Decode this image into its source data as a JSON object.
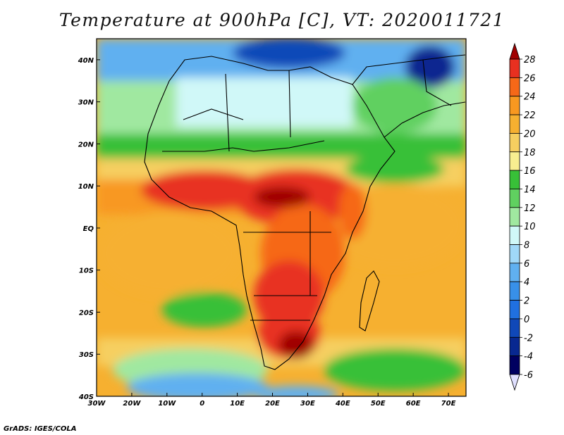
{
  "title": "Temperature at 900hPa [C], VT: 2020011721",
  "credit": "GrADS: IGES/COLA",
  "map": {
    "lon_labels": [
      "30W",
      "20W",
      "10W",
      "0",
      "10E",
      "20E",
      "30E",
      "40E",
      "50E",
      "60E",
      "70E"
    ],
    "lat_labels": [
      "40N",
      "30N",
      "20N",
      "10N",
      "EQ",
      "10S",
      "20S",
      "30S",
      "40S"
    ],
    "lon_range": [
      -30,
      75
    ],
    "lat_range": [
      -40,
      45
    ]
  },
  "colorbar": {
    "labels": [
      "28",
      "26",
      "24",
      "22",
      "20",
      "18",
      "16",
      "14",
      "12",
      "10",
      "8",
      "6",
      "4",
      "2",
      "0",
      "-2",
      "-4",
      "-6"
    ],
    "colors": [
      "#a00000",
      "#e83020",
      "#f66818",
      "#f89820",
      "#f6b030",
      "#f6cf60",
      "#f8ee90",
      "#38c038",
      "#60d060",
      "#a0e8a0",
      "#d0f8f8",
      "#a0d8f8",
      "#60b0f0",
      "#3890e8",
      "#2070e0",
      "#1048b8",
      "#082890",
      "#000060",
      "#e0e0ff"
    ]
  }
}
